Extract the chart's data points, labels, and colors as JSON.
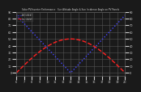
{
  "title": "Solar PV/Inverter Performance   Sun Altitude Angle & Sun Incidence Angle on PV Panels",
  "bg_color": "#1a1a1a",
  "plot_bg_color": "#1a1a1a",
  "grid_color": "#555555",
  "altitude_color": "#4444ff",
  "incidence_color": "#ff2222",
  "x_start": 6,
  "x_end": 20,
  "x_ticks": [
    6,
    7,
    8,
    9,
    10,
    11,
    12,
    13,
    14,
    15,
    16,
    17,
    18,
    19,
    20
  ],
  "y_left_min": -5,
  "y_left_max": 90,
  "y_right_min": -5,
  "y_right_max": 90,
  "right_yticks": [
    90,
    80,
    70,
    60,
    50,
    40,
    30,
    20,
    10,
    0
  ],
  "left_yticks": [
    0,
    10,
    20,
    30,
    40,
    50,
    60,
    70,
    80,
    90
  ],
  "legend_altitude": "Alt (###)",
  "legend_incidence": "Inc (###)",
  "text_color": "#cccccc",
  "title_color": "#cccccc"
}
